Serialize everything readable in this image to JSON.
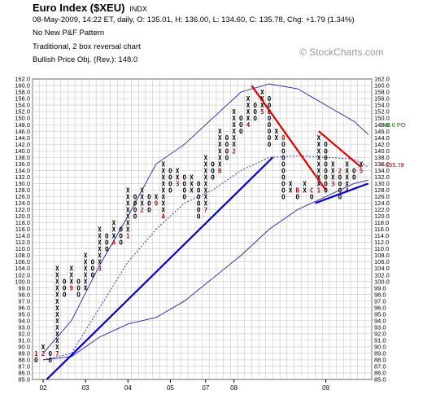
{
  "header": {
    "title": "Euro Index ($XEU)",
    "exchange": "INDX",
    "quote_line": "08-May-2009, 14:22 ET, daily, O: 135.01, H: 136.00, L: 134.60, C: 135.78, Chg: +1.79 (1.34%)",
    "pattern_line": "No New P&F Pattern",
    "chart_type_line": "Traditional, 2 box reversal chart",
    "objective_line": "Bullish Price Obj. (Rev.): 148.0"
  },
  "logo_text": "© StockCharts.com",
  "colors": {
    "x_mark": "#000000",
    "o_mark": "#000000",
    "month_marker": "#cc0000",
    "bullish_trendline": "#0000cc",
    "bearish_trendline": "#dd0000",
    "moving_average": "#2222aa",
    "price_objective": "#007700",
    "current_price": "#aa0000"
  },
  "chart_data": {
    "type": "point-and-figure",
    "box_size": 2,
    "reversal": 2,
    "ylim": [
      85,
      162
    ],
    "y_ticks_left": [
      "162.0",
      "160.0",
      "158.0",
      "156.0",
      "154.0",
      "152.0",
      "150.0",
      "148.0",
      "146.0",
      "144.0",
      "142.0",
      "140.0",
      "138.0",
      "136.0",
      "134.0",
      "132.0",
      "130.0",
      "128.0",
      "126.0",
      "124.0",
      "122.0",
      "120.0",
      "118.0",
      "116.0",
      "114.0",
      "112.0",
      "110.0",
      "108.0",
      "106.0",
      "104.0",
      "102.0",
      "100.0",
      "99.0",
      "98.0",
      "97.0",
      "96.0",
      "95.0",
      "94.0",
      "93.0",
      "92.0",
      "91.0",
      "90.0",
      "89.0",
      "88.0",
      "87.0",
      "86.0",
      "85.0"
    ],
    "y_ticks_right": [
      "162.0",
      "160.0",
      "158.0",
      "156.0",
      "154.0",
      "152.0",
      "150.0",
      "148.0",
      "146.0",
      "144.0",
      "142.0",
      "140.0",
      "138.0",
      "136.0",
      "134.0",
      "132.0",
      "130.0",
      "128.0",
      "126.0",
      "124.0",
      "122.0",
      "120.0",
      "118.0",
      "116.0",
      "114.0",
      "112.0",
      "110.0",
      "108.0",
      "106.0",
      "104.0",
      "102.0",
      "100.0",
      "99.0",
      "98.0",
      "97.0",
      "96.0",
      "95.0",
      "94.0",
      "93.0",
      "92.0",
      "91.0",
      "90.0",
      "89.0",
      "88.0",
      "87.0",
      "86.0",
      "85.0"
    ],
    "x_ticks": [
      {
        "label": "02",
        "col": 1
      },
      {
        "label": "03",
        "col": 7
      },
      {
        "label": "04",
        "col": 13
      },
      {
        "label": "05",
        "col": 19
      },
      {
        "label": "07",
        "col": 24
      },
      {
        "label": "08",
        "col": 28
      },
      {
        "label": "09",
        "col": 41
      }
    ],
    "columns": [
      {
        "col": 0,
        "type": "O",
        "from": 89.0,
        "to": 88.0,
        "month_label": "1"
      },
      {
        "col": 1,
        "type": "X",
        "from": 89.0,
        "to": 90.0,
        "month_label": "2"
      },
      {
        "col": 2,
        "type": "O",
        "from": 89.0,
        "to": 88.0
      },
      {
        "col": 3,
        "type": "X",
        "from": 89.0,
        "to": 104.0,
        "month_label": "7"
      },
      {
        "col": 4,
        "type": "O",
        "from": 100.0,
        "to": 98.0
      },
      {
        "col": 5,
        "type": "X",
        "from": 99.0,
        "to": 104.0,
        "month_label": "9"
      },
      {
        "col": 6,
        "type": "O",
        "from": 100.0,
        "to": 98.0
      },
      {
        "col": 7,
        "type": "X",
        "from": 99.0,
        "to": 108.0
      },
      {
        "col": 8,
        "type": "O",
        "from": 106.0,
        "to": 102.0
      },
      {
        "col": 9,
        "type": "X",
        "from": 104.0,
        "to": 116.0,
        "month_label": "3"
      },
      {
        "col": 10,
        "type": "O",
        "from": 114.0,
        "to": 110.0
      },
      {
        "col": 11,
        "type": "X",
        "from": 112.0,
        "to": 118.0,
        "month_label": "A"
      },
      {
        "col": 12,
        "type": "O",
        "from": 116.0,
        "to": 112.0
      },
      {
        "col": 13,
        "type": "X",
        "from": 114.0,
        "to": 128.0,
        "month_label": "1"
      },
      {
        "col": 14,
        "type": "O",
        "from": 126.0,
        "to": 120.0
      },
      {
        "col": 15,
        "type": "X",
        "from": 122.0,
        "to": 128.0,
        "month_label": "2"
      },
      {
        "col": 16,
        "type": "O",
        "from": 126.0,
        "to": 122.0
      },
      {
        "col": 17,
        "type": "X",
        "from": 124.0,
        "to": 126.0,
        "month_label": "9"
      },
      {
        "col": 18,
        "type": "X",
        "from": 120.0,
        "to": 136.0,
        "month_label": "A"
      },
      {
        "col": 19,
        "type": "O",
        "from": 134.0,
        "to": 128.0
      },
      {
        "col": 20,
        "type": "X",
        "from": 130.0,
        "to": 134.0,
        "month_label": "3"
      },
      {
        "col": 21,
        "type": "O",
        "from": 132.0,
        "to": 126.0
      },
      {
        "col": 22,
        "type": "X",
        "from": 128.0,
        "to": 132.0
      },
      {
        "col": 23,
        "type": "O",
        "from": 130.0,
        "to": 120.0
      },
      {
        "col": 24,
        "type": "X",
        "from": 122.0,
        "to": 138.0,
        "month_label": "7"
      },
      {
        "col": 25,
        "type": "O",
        "from": 136.0,
        "to": 132.0
      },
      {
        "col": 26,
        "type": "X",
        "from": 134.0,
        "to": 146.0,
        "month_label": "B"
      },
      {
        "col": 27,
        "type": "O",
        "from": 144.0,
        "to": 138.0
      },
      {
        "col": 28,
        "type": "X",
        "from": 140.0,
        "to": 152.0,
        "month_label": "2"
      },
      {
        "col": 29,
        "type": "O",
        "from": 150.0,
        "to": 146.0
      },
      {
        "col": 30,
        "type": "X",
        "from": 148.0,
        "to": 156.0,
        "month_label": "4"
      },
      {
        "col": 31,
        "type": "O",
        "from": 154.0,
        "to": 150.0
      },
      {
        "col": 32,
        "type": "X",
        "from": 152.0,
        "to": 158.0,
        "month_label": "5"
      },
      {
        "col": 33,
        "type": "O",
        "from": 156.0,
        "to": 142.0
      },
      {
        "col": 34,
        "type": "X",
        "from": 144.0,
        "to": 146.0
      },
      {
        "col": 35,
        "type": "O",
        "from": 144.0,
        "to": 126.0,
        "month_label": "8"
      },
      {
        "col": 36,
        "type": "X",
        "from": 128.0,
        "to": 130.0
      },
      {
        "col": 37,
        "type": "O",
        "from": 128.0,
        "to": 126.0,
        "month_label": "B"
      },
      {
        "col": 38,
        "type": "X",
        "from": 128.0,
        "to": 130.0
      },
      {
        "col": 39,
        "type": "O",
        "from": 128.0,
        "to": 126.0,
        "month_label": "C"
      },
      {
        "col": 40,
        "type": "X",
        "from": 128.0,
        "to": 144.0,
        "month_label": "1"
      },
      {
        "col": 41,
        "type": "O",
        "from": 142.0,
        "to": 128.0
      },
      {
        "col": 42,
        "type": "X",
        "from": 130.0,
        "to": 136.0,
        "month_label": "3"
      },
      {
        "col": 43,
        "type": "O",
        "from": 134.0,
        "to": 126.0,
        "month_label": "2"
      },
      {
        "col": 44,
        "type": "X",
        "from": 128.0,
        "to": 136.0,
        "month_label": "4"
      },
      {
        "col": 45,
        "type": "O",
        "from": 134.0,
        "to": 132.0
      },
      {
        "col": 46,
        "type": "X",
        "from": 134.0,
        "to": 136.0,
        "month_label": "5"
      }
    ],
    "bullish_trendlines": [
      {
        "from": {
          "col": 1.5,
          "y": 85.0
        },
        "to": {
          "col": 33.5,
          "y": 138.0
        }
      },
      {
        "from": {
          "col": 39.5,
          "y": 124.0
        },
        "to": {
          "col": 47.0,
          "y": 130.0
        }
      }
    ],
    "bearish_trendlines": [
      {
        "from": {
          "col": 30.5,
          "y": 160.0
        },
        "to": {
          "col": 41.0,
          "y": 128.0
        }
      },
      {
        "from": {
          "col": 40.0,
          "y": 146.0
        },
        "to": {
          "col": 46.0,
          "y": 135.0
        }
      }
    ],
    "moving_average": {
      "style": "dashed",
      "points": [
        [
          1,
          88.0
        ],
        [
          5,
          89.0
        ],
        [
          9,
          96.0
        ],
        [
          13,
          106.0
        ],
        [
          17,
          116.0
        ],
        [
          21,
          124.0
        ],
        [
          25,
          128.0
        ],
        [
          29,
          134.0
        ],
        [
          33,
          138.0
        ],
        [
          37,
          138.5
        ],
        [
          41,
          138.0
        ],
        [
          45,
          137.5
        ],
        [
          47,
          135.0
        ]
      ]
    },
    "bands": [
      {
        "name": "upper",
        "points": [
          [
            1,
            89.0
          ],
          [
            5,
            94.0
          ],
          [
            9,
            105.0
          ],
          [
            13,
            120.0
          ],
          [
            17,
            136.0
          ],
          [
            21,
            142.0
          ],
          [
            25,
            150.0
          ],
          [
            29,
            158.0
          ],
          [
            33,
            160.5
          ],
          [
            37,
            159.0
          ],
          [
            41,
            154.0
          ],
          [
            45,
            149.0
          ],
          [
            47,
            145.0
          ]
        ]
      },
      {
        "name": "lower",
        "points": [
          [
            1,
            88.0
          ],
          [
            5,
            88.5
          ],
          [
            9,
            91.5
          ],
          [
            13,
            93.5
          ],
          [
            17,
            94.5
          ],
          [
            21,
            97.0
          ],
          [
            25,
            101.0
          ],
          [
            29,
            108.0
          ],
          [
            33,
            116.0
          ],
          [
            37,
            122.0
          ],
          [
            41,
            126.0
          ],
          [
            45,
            130.0
          ],
          [
            47,
            131.0
          ]
        ]
      }
    ],
    "price_objective": {
      "value": 148.0,
      "label": "148.0 PO"
    },
    "current_price": {
      "value": 135.78,
      "label": "<-135.78"
    }
  }
}
